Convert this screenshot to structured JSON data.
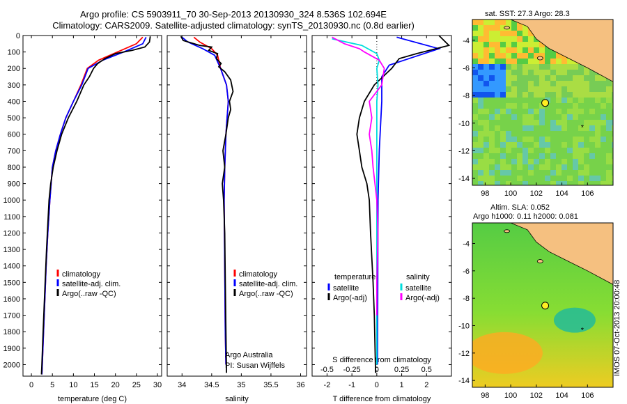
{
  "header": {
    "title1": "Argo profile: CS 5903911_70 30-Sep-2013 20130930_324 8.536S 102.694E",
    "title2": "Climatology: CARS2009. Satellite-adjusted climatology: synTS_20130930.nc (0.8d earlier)"
  },
  "footer": {
    "vertical_text": "IMOS 07-Oct-2013 20:00:48"
  },
  "chart_data": [
    {
      "type": "line",
      "id": "temperature",
      "xlabel": "temperature (deg C)",
      "xlim": [
        -2,
        31
      ],
      "ylim": [
        2070,
        0
      ],
      "xticks": [
        0,
        5,
        10,
        15,
        20,
        25,
        30
      ],
      "yticks": [
        0,
        100,
        200,
        300,
        400,
        500,
        600,
        700,
        800,
        900,
        1000,
        1100,
        1200,
        1300,
        1400,
        1500,
        1600,
        1700,
        1800,
        1900,
        2000
      ],
      "legend": [
        "climatology",
        "satellite-adj. clim.",
        "Argo(..raw -QC)"
      ],
      "series": [
        {
          "name": "climatology",
          "color": "#ff0000",
          "points": [
            [
              26.5,
              10
            ],
            [
              25,
              50
            ],
            [
              20.5,
              100
            ],
            [
              16,
              150
            ],
            [
              13.3,
              200
            ],
            [
              11.8,
              300
            ],
            [
              10,
              400
            ],
            [
              8.2,
              500
            ],
            [
              6.9,
              600
            ],
            [
              5.8,
              700
            ],
            [
              5,
              800
            ],
            [
              4.4,
              1000
            ],
            [
              3.9,
              1200
            ],
            [
              3.5,
              1400
            ],
            [
              3.2,
              1600
            ],
            [
              2.9,
              1800
            ],
            [
              2.6,
              2000
            ],
            [
              2.5,
              2060
            ]
          ]
        },
        {
          "name": "satellite-adj. clim.",
          "color": "#0000ff",
          "points": [
            [
              27.3,
              10
            ],
            [
              26.5,
              50
            ],
            [
              22,
              100
            ],
            [
              17,
              150
            ],
            [
              13.5,
              200
            ],
            [
              12,
              300
            ],
            [
              10,
              400
            ],
            [
              8.2,
              500
            ],
            [
              6.9,
              600
            ],
            [
              5.8,
              700
            ],
            [
              5,
              800
            ],
            [
              4.4,
              1000
            ],
            [
              3.9,
              1200
            ],
            [
              3.5,
              1400
            ],
            [
              3.2,
              1600
            ],
            [
              2.9,
              1800
            ],
            [
              2.6,
              2000
            ],
            [
              2.5,
              2060
            ]
          ]
        },
        {
          "name": "Argo(..raw -QC)",
          "color": "#000000",
          "points": [
            [
              28.3,
              5
            ],
            [
              28.1,
              40
            ],
            [
              27,
              70
            ],
            [
              24,
              90
            ],
            [
              20,
              110
            ],
            [
              17.5,
              140
            ],
            [
              15.8,
              170
            ],
            [
              14.8,
              200
            ],
            [
              13.8,
              250
            ],
            [
              12.5,
              300
            ],
            [
              10.8,
              400
            ],
            [
              8.8,
              500
            ],
            [
              7.2,
              600
            ],
            [
              6.1,
              700
            ],
            [
              5.2,
              800
            ],
            [
              4.6,
              900
            ],
            [
              4.2,
              1000
            ],
            [
              3.6,
              1300
            ],
            [
              3.1,
              1600
            ],
            [
              2.8,
              1800
            ],
            [
              2.5,
              2000
            ],
            [
              2.4,
              2060
            ]
          ]
        }
      ]
    },
    {
      "type": "line",
      "id": "salinity",
      "xlabel": "salinity",
      "xlim": [
        33.75,
        36.1
      ],
      "ylim": [
        2070,
        0
      ],
      "xticks": [
        34,
        34.5,
        35,
        35.5,
        36
      ],
      "legend": [
        "climatology",
        "satellite-adj. clim.",
        "Argo(..raw -QC)"
      ],
      "annotation": [
        "Argo Australia",
        "PI: Susan Wijffels"
      ],
      "series": [
        {
          "name": "climatology",
          "color": "#ff0000",
          "points": [
            [
              34.2,
              10
            ],
            [
              34.3,
              40
            ],
            [
              34.5,
              80
            ],
            [
              34.6,
              120
            ],
            [
              34.65,
              200
            ],
            [
              34.75,
              300
            ],
            [
              34.78,
              400
            ],
            [
              34.74,
              600
            ],
            [
              34.72,
              800
            ],
            [
              34.71,
              1000
            ],
            [
              34.72,
              1400
            ],
            [
              34.73,
              1800
            ],
            [
              34.74,
              2000
            ]
          ]
        },
        {
          "name": "satellite-adj. clim.",
          "color": "#0000ff",
          "points": [
            [
              34.0,
              10
            ],
            [
              34.1,
              40
            ],
            [
              34.35,
              80
            ],
            [
              34.55,
              120
            ],
            [
              34.65,
              200
            ],
            [
              34.75,
              300
            ],
            [
              34.78,
              400
            ],
            [
              34.74,
              600
            ],
            [
              34.72,
              800
            ],
            [
              34.71,
              1000
            ],
            [
              34.72,
              1400
            ],
            [
              34.73,
              1800
            ],
            [
              34.74,
              2000
            ]
          ]
        },
        {
          "name": "Argo(..raw -QC)",
          "color": "#000000",
          "points": [
            [
              33.98,
              5
            ],
            [
              34.02,
              30
            ],
            [
              34.3,
              60
            ],
            [
              34.5,
              70
            ],
            [
              34.45,
              90
            ],
            [
              34.6,
              110
            ],
            [
              34.58,
              140
            ],
            [
              34.66,
              170
            ],
            [
              34.62,
              190
            ],
            [
              34.72,
              220
            ],
            [
              34.82,
              270
            ],
            [
              34.86,
              340
            ],
            [
              34.8,
              400
            ],
            [
              34.82,
              450
            ],
            [
              34.78,
              500
            ],
            [
              34.74,
              600
            ],
            [
              34.69,
              700
            ],
            [
              34.72,
              800
            ],
            [
              34.68,
              900
            ],
            [
              34.7,
              1000
            ],
            [
              34.72,
              1200
            ],
            [
              34.73,
              1500
            ],
            [
              34.74,
              1800
            ],
            [
              34.75,
              2050
            ]
          ]
        }
      ]
    },
    {
      "type": "line",
      "id": "difference",
      "xlabel": "T difference from climatology",
      "xlabel2": "S difference from climatology",
      "xlim": [
        -2.6,
        3
      ],
      "ylim": [
        2070,
        0
      ],
      "xticks": [
        -2,
        -1,
        0,
        1,
        2
      ],
      "xticks2": [
        -0.5,
        -0.25,
        0,
        0.25,
        0.5
      ],
      "xticks2_positions": [
        -2,
        -1,
        0,
        1,
        2
      ],
      "legend_left_title": "temperature",
      "legend_right_title": "salinity",
      "legend_left": [
        "satellite",
        "Argo(-adj)"
      ],
      "legend_right": [
        "satellite",
        "Argo(-adj)"
      ],
      "series": [
        {
          "name": "T satellite",
          "color": "#0000ff",
          "points": [
            [
              0.8,
              10
            ],
            [
              2.5,
              80
            ],
            [
              1.5,
              130
            ],
            [
              0.5,
              180
            ],
            [
              0.2,
              250
            ],
            [
              0.2,
              400
            ],
            [
              0.1,
              700
            ],
            [
              0.05,
              1000
            ],
            [
              0.03,
              2000
            ]
          ]
        },
        {
          "name": "T Argo(-adj)",
          "color": "#000000",
          "points": [
            [
              2.5,
              0
            ],
            [
              2.9,
              60
            ],
            [
              1.6,
              110
            ],
            [
              0.9,
              140
            ],
            [
              0.6,
              200
            ],
            [
              -0.1,
              300
            ],
            [
              -0.5,
              400
            ],
            [
              -0.7,
              500
            ],
            [
              -0.8,
              600
            ],
            [
              -0.7,
              700
            ],
            [
              -0.6,
              800
            ],
            [
              -0.4,
              900
            ],
            [
              -0.3,
              1000
            ],
            [
              -0.25,
              1200
            ],
            [
              -0.15,
              1500
            ],
            [
              -0.1,
              1700
            ],
            [
              -0.05,
              2050
            ]
          ]
        },
        {
          "name": "S satellite",
          "color": "#00dddd",
          "points": [
            [
              -1.8,
              20
            ],
            [
              -0.6,
              60
            ],
            [
              0,
              110
            ],
            [
              0.1,
              150
            ],
            [
              0,
              200
            ],
            [
              0.05,
              300
            ],
            [
              0,
              400
            ],
            [
              0,
              700
            ],
            [
              0,
              1000
            ],
            [
              0,
              2000
            ]
          ]
        },
        {
          "name": "S Argo(-adj)",
          "color": "#ff00ff",
          "points": [
            [
              -1.8,
              10
            ],
            [
              -1.3,
              50
            ],
            [
              -0.7,
              80
            ],
            [
              -0.5,
              100
            ],
            [
              0.1,
              150
            ],
            [
              0.3,
              200
            ],
            [
              0.2,
              300
            ],
            [
              -0.3,
              400
            ],
            [
              -0.2,
              500
            ],
            [
              -0.3,
              600
            ],
            [
              -0.2,
              700
            ],
            [
              -0.15,
              800
            ],
            [
              0,
              1000
            ],
            [
              0.05,
              1200
            ],
            [
              0,
              1500
            ],
            [
              0,
              1700
            ]
          ]
        }
      ]
    },
    {
      "type": "heatmap",
      "id": "sst-map",
      "title": "sat. SST: 27.3 Argo: 28.3",
      "xlim": [
        97,
        108
      ],
      "ylim": [
        -14.5,
        -2.5
      ],
      "xticks": [
        98,
        100,
        102,
        104,
        106
      ],
      "yticks": [
        -4,
        -6,
        -8,
        -10,
        -12,
        -14
      ],
      "argo_position": [
        102.694,
        -8.536
      ]
    },
    {
      "type": "heatmap",
      "id": "sla-map",
      "title": "Altim. SLA: 0.052",
      "subtitle": "Argo h1000: 0.11 h2000: 0.081",
      "xlim": [
        97,
        108
      ],
      "ylim": [
        -14.5,
        -2.5
      ],
      "xticks": [
        98,
        100,
        102,
        104,
        106
      ],
      "yticks": [
        -4,
        -6,
        -8,
        -10,
        -12,
        -14
      ],
      "argo_position": [
        102.694,
        -8.536
      ]
    }
  ]
}
